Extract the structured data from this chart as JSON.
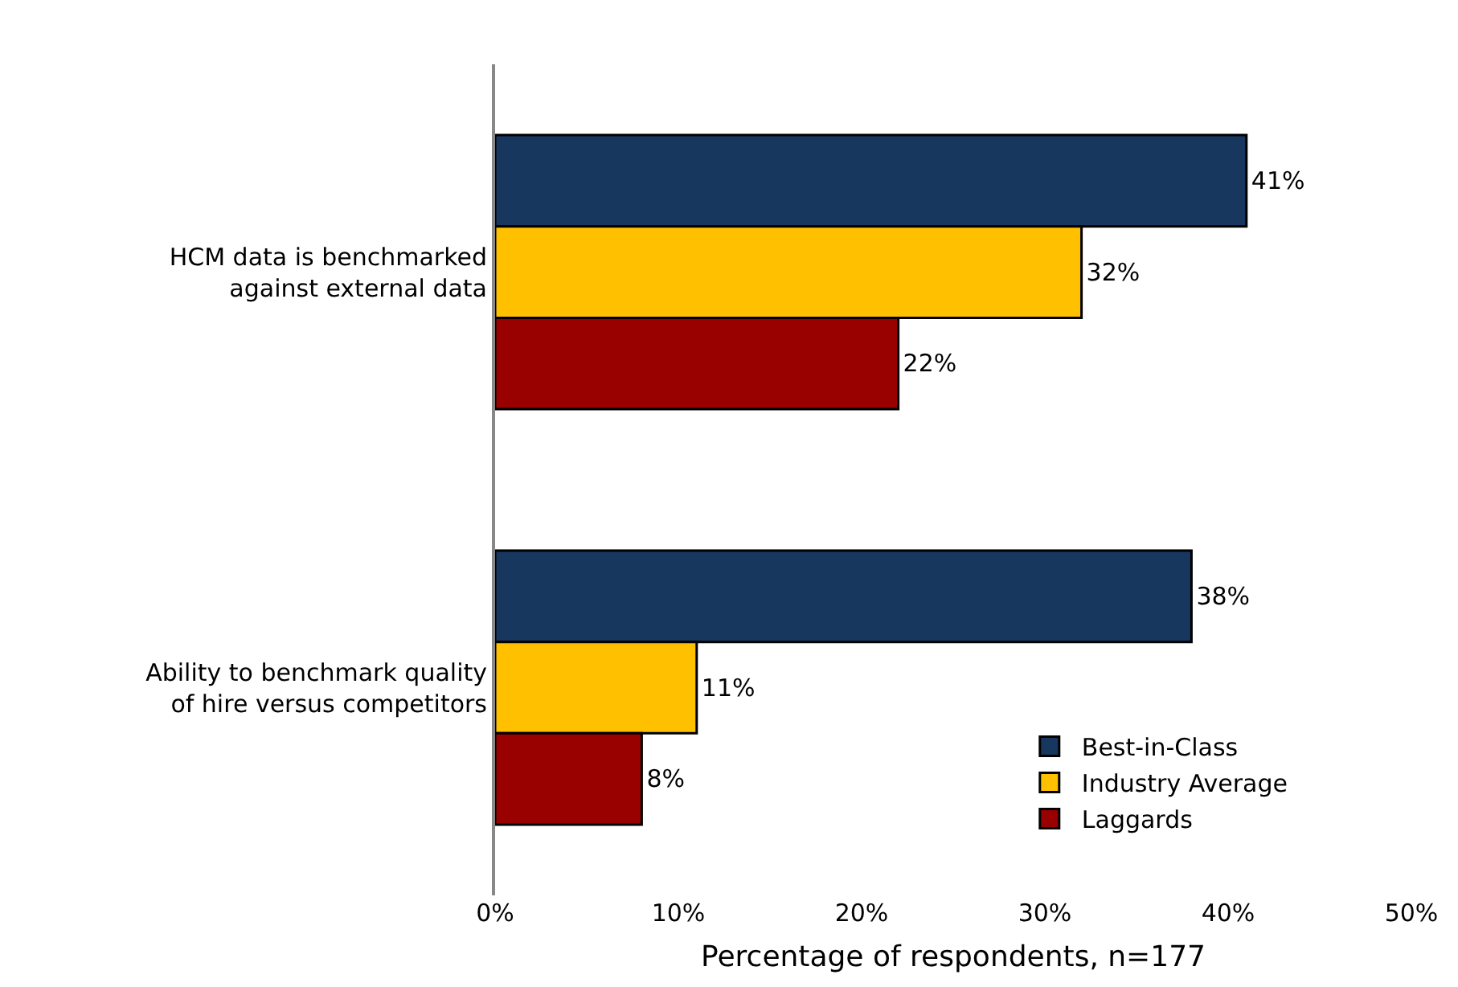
{
  "chart_data": {
    "type": "bar",
    "orientation": "horizontal",
    "xlabel": "Percentage of respondents, n=177",
    "categories": [
      "HCM data is benchmarked against external data",
      "Ability to benchmark quality of hire versus competitors"
    ],
    "series": [
      {
        "name": "Best-in-Class",
        "color": "#17375e",
        "values": [
          41,
          38
        ],
        "value_labels": [
          "41%",
          "38%"
        ]
      },
      {
        "name": "Industry Average",
        "color": "#ffc000",
        "values": [
          32,
          11
        ],
        "value_labels": [
          "32%",
          "11%"
        ]
      },
      {
        "name": "Laggards",
        "color": "#990000",
        "values": [
          22,
          8
        ],
        "value_labels": [
          "22%",
          "8%"
        ]
      }
    ],
    "xlim": [
      0,
      50
    ],
    "xticks": [
      {
        "value": 0,
        "label": "0%"
      },
      {
        "value": 10,
        "label": "10%"
      },
      {
        "value": 20,
        "label": "20%"
      },
      {
        "value": 30,
        "label": "30%"
      },
      {
        "value": 40,
        "label": "40%"
      },
      {
        "value": 50,
        "label": "50%"
      }
    ],
    "legend": "bottom right"
  }
}
